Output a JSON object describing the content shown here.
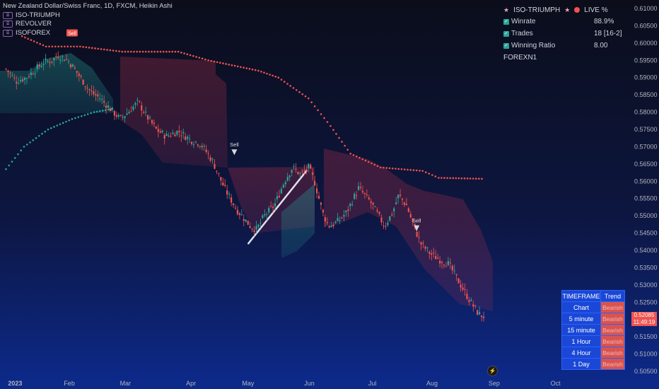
{
  "legend": {
    "symbol": "New Zealand Dollar/Swiss Franc, 1D, FXCM, Heikin Ashi",
    "indicators": [
      "ISO-TRIUMPH",
      "REVOLVER",
      "ISOFOREX"
    ]
  },
  "stats": {
    "title": "ISO-TRIUMPH",
    "live": "LIVE %",
    "rows": [
      {
        "label": "Winrate",
        "value": "88.9%"
      },
      {
        "label": "Trades",
        "value": "18 [16-2]"
      },
      {
        "label": "Winning Ratio",
        "value": "8.00"
      }
    ],
    "footer": "FOREXN1"
  },
  "signals": {
    "sell_label": "Sell"
  },
  "timeframe_table": {
    "headers": [
      "TIMEFRAME",
      "Trend"
    ],
    "rows": [
      [
        "Chart",
        "Bearish"
      ],
      [
        "5 minute",
        "Bearish"
      ],
      [
        "15 minute",
        "Bearish"
      ],
      [
        "1 Hour",
        "Bearish"
      ],
      [
        "4 Hour",
        "Bearish"
      ],
      [
        "1 Day",
        "Bearish"
      ]
    ]
  },
  "price_tag": {
    "price": "0.52085",
    "countdown": "11:49:19"
  },
  "colors": {
    "bull": "#26a69a",
    "bear": "#ef5350",
    "trail_up": "#26a69a",
    "trail_down": "#ef5350",
    "accent": "#2962ff"
  },
  "chart_data": {
    "type": "candlestick",
    "y_axis": {
      "range": [
        0.5048,
        0.6108
      ],
      "ticks": [
        "0.61000",
        "0.60500",
        "0.60000",
        "0.59500",
        "0.59000",
        "0.58500",
        "0.58000",
        "0.57500",
        "0.57000",
        "0.56500",
        "0.56000",
        "0.55500",
        "0.55000",
        "0.54500",
        "0.54000",
        "0.53500",
        "0.53000",
        "0.52500",
        "0.52000",
        "0.51500",
        "0.51000",
        "0.50500"
      ]
    },
    "x_axis": {
      "ticks": [
        "2023",
        "Feb",
        "Mar",
        "Apr",
        "May",
        "Jun",
        "Jul",
        "Aug",
        "Sep",
        "Oct"
      ]
    },
    "close_path": [
      [
        "2023-01-01",
        0.5925
      ],
      [
        "2023-01-06",
        0.589
      ],
      [
        "2023-01-11",
        0.59
      ],
      [
        "2023-01-17",
        0.593
      ],
      [
        "2023-01-20",
        0.5945
      ],
      [
        "2023-01-24",
        0.595
      ],
      [
        "2023-01-27",
        0.5965
      ],
      [
        "2023-02-01",
        0.595
      ],
      [
        "2023-02-06",
        0.591
      ],
      [
        "2023-02-12",
        0.586
      ],
      [
        "2023-02-17",
        0.584
      ],
      [
        "2023-02-22",
        0.581
      ],
      [
        "2023-02-27",
        0.578
      ],
      [
        "2023-03-03",
        0.58
      ],
      [
        "2023-03-08",
        0.583
      ],
      [
        "2023-03-12",
        0.579
      ],
      [
        "2023-03-17",
        0.575
      ],
      [
        "2023-03-22",
        0.573
      ],
      [
        "2023-03-28",
        0.5745
      ],
      [
        "2023-04-03",
        0.572
      ],
      [
        "2023-04-08",
        0.571
      ],
      [
        "2023-04-14",
        0.566
      ],
      [
        "2023-04-20",
        0.558
      ],
      [
        "2023-04-26",
        0.552
      ],
      [
        "2023-05-03",
        0.547
      ],
      [
        "2023-05-06",
        0.546
      ],
      [
        "2023-05-10",
        0.55
      ],
      [
        "2023-05-15",
        0.553
      ],
      [
        "2023-05-20",
        0.56
      ],
      [
        "2023-05-24",
        0.564
      ],
      [
        "2023-05-28",
        0.562
      ],
      [
        "2023-06-01",
        0.564
      ],
      [
        "2023-06-04",
        0.56
      ],
      [
        "2023-06-08",
        0.551
      ],
      [
        "2023-06-11",
        0.547
      ],
      [
        "2023-06-15",
        0.548
      ],
      [
        "2023-06-20",
        0.551
      ],
      [
        "2023-06-26",
        0.558
      ],
      [
        "2023-07-02",
        0.554
      ],
      [
        "2023-07-05",
        0.551
      ],
      [
        "2023-07-09",
        0.547
      ],
      [
        "2023-07-13",
        0.551
      ],
      [
        "2023-07-16",
        0.556
      ],
      [
        "2023-07-20",
        0.553
      ],
      [
        "2023-07-23",
        0.548
      ],
      [
        "2023-07-27",
        0.542
      ],
      [
        "2023-08-01",
        0.539
      ],
      [
        "2023-08-05",
        0.5375
      ],
      [
        "2023-08-10",
        0.536
      ],
      [
        "2023-08-15",
        0.531
      ],
      [
        "2023-08-20",
        0.526
      ],
      [
        "2023-08-25",
        0.5215
      ],
      [
        "2023-08-28",
        0.5208
      ]
    ],
    "upper_trail": [
      [
        "2023-01-09",
        0.602
      ],
      [
        "2023-01-21",
        0.599
      ],
      [
        "2023-02-07",
        0.599
      ],
      [
        "2023-02-28",
        0.5975
      ],
      [
        "2023-03-28",
        0.5975
      ],
      [
        "2023-04-12",
        0.595
      ],
      [
        "2023-05-07",
        0.592
      ],
      [
        "2023-05-17",
        0.59
      ],
      [
        "2023-06-01",
        0.584
      ],
      [
        "2023-06-12",
        0.576
      ],
      [
        "2023-06-22",
        0.568
      ],
      [
        "2023-07-07",
        0.564
      ],
      [
        "2023-07-28",
        0.563
      ],
      [
        "2023-08-05",
        0.561
      ],
      [
        "2023-08-28",
        0.5607
      ]
    ],
    "lower_trail": [
      [
        "2023-01-01",
        0.5635
      ],
      [
        "2023-01-10",
        0.57
      ],
      [
        "2023-01-22",
        0.575
      ],
      [
        "2023-02-03",
        0.578
      ],
      [
        "2023-02-14",
        0.58
      ],
      [
        "2023-02-24",
        0.581
      ]
    ],
    "sell_signals": [
      [
        "2023-02-03",
        0.6015
      ],
      [
        "2023-04-25",
        0.568
      ],
      [
        "2023-07-25",
        0.546
      ]
    ],
    "trend_line": [
      [
        "2023-05-02",
        0.542
      ],
      [
        "2023-05-31",
        0.563
      ]
    ]
  }
}
